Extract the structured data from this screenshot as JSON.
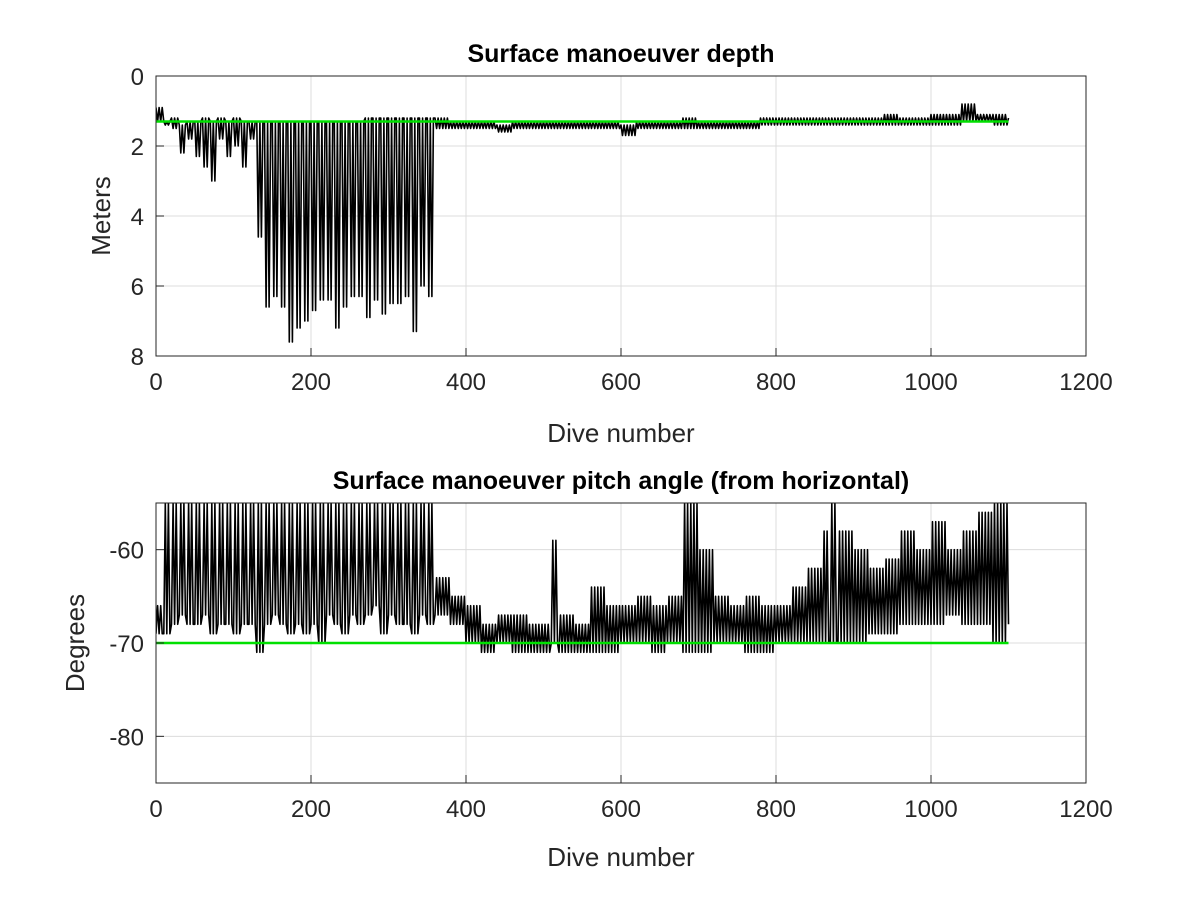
{
  "chart_data": [
    {
      "type": "line",
      "title": "Surface manoeuver depth",
      "xlabel": "Dive number",
      "ylabel": "Meters",
      "xlim": [
        0,
        1200
      ],
      "ylim": [
        0,
        8
      ],
      "y_reversed": true,
      "grid": true,
      "xticks": [
        0,
        200,
        400,
        600,
        800,
        1000,
        1200
      ],
      "yticks": [
        0,
        2,
        4,
        6,
        8
      ],
      "series": [
        {
          "color": "#000000",
          "values_description": "per-dive surface manoeuver depth",
          "x": [
            0,
            10,
            20,
            30,
            40,
            50,
            60,
            70,
            80,
            90,
            100,
            110,
            120,
            130,
            140,
            150,
            160,
            170,
            180,
            190,
            200,
            210,
            220,
            230,
            240,
            250,
            260,
            270,
            280,
            290,
            300,
            310,
            320,
            330,
            340,
            350,
            360,
            380,
            400,
            420,
            440,
            460,
            480,
            500,
            520,
            540,
            560,
            580,
            600,
            620,
            640,
            660,
            680,
            700,
            720,
            740,
            760,
            780,
            800,
            820,
            840,
            860,
            880,
            900,
            920,
            940,
            960,
            980,
            1000,
            1020,
            1040,
            1060,
            1080,
            1100
          ],
          "low": [
            0.9,
            1.3,
            1.2,
            1.4,
            1.3,
            1.3,
            1.2,
            1.3,
            1.2,
            1.3,
            1.2,
            1.3,
            1.3,
            1.3,
            1.3,
            1.3,
            1.3,
            1.3,
            1.3,
            1.3,
            1.3,
            1.3,
            1.3,
            1.3,
            1.3,
            1.3,
            1.3,
            1.2,
            1.2,
            1.2,
            1.2,
            1.2,
            1.2,
            1.2,
            1.2,
            1.2,
            1.2,
            1.3,
            1.3,
            1.3,
            1.4,
            1.3,
            1.3,
            1.3,
            1.3,
            1.3,
            1.3,
            1.3,
            1.4,
            1.3,
            1.3,
            1.3,
            1.2,
            1.3,
            1.3,
            1.3,
            1.3,
            1.2,
            1.2,
            1.2,
            1.2,
            1.2,
            1.2,
            1.2,
            1.2,
            1.1,
            1.2,
            1.2,
            1.1,
            1.1,
            0.8,
            1.1,
            1.1,
            1.2
          ],
          "high": [
            1.3,
            1.4,
            1.5,
            2.2,
            1.8,
            2.3,
            2.6,
            3.0,
            1.8,
            2.3,
            2.0,
            2.6,
            1.8,
            4.6,
            6.6,
            6.3,
            6.6,
            7.6,
            7.2,
            7.0,
            6.7,
            6.4,
            6.4,
            7.2,
            6.6,
            6.3,
            6.3,
            6.9,
            6.4,
            6.8,
            6.5,
            6.5,
            6.3,
            7.3,
            6.0,
            6.3,
            1.5,
            1.5,
            1.5,
            1.5,
            1.6,
            1.5,
            1.5,
            1.5,
            1.5,
            1.5,
            1.5,
            1.5,
            1.7,
            1.5,
            1.5,
            1.5,
            1.5,
            1.5,
            1.5,
            1.5,
            1.5,
            1.4,
            1.4,
            1.4,
            1.4,
            1.4,
            1.4,
            1.4,
            1.4,
            1.4,
            1.4,
            1.4,
            1.4,
            1.4,
            1.3,
            1.3,
            1.4,
            1.4
          ]
        },
        {
          "color": "#00e000",
          "x": [
            0,
            1100
          ],
          "values": [
            1.3,
            1.3
          ]
        }
      ]
    },
    {
      "type": "line",
      "title": "Surface manoeuver pitch angle (from horizontal)",
      "xlabel": "Dive number",
      "ylabel": "Degrees",
      "xlim": [
        0,
        1200
      ],
      "ylim": [
        -85,
        -55
      ],
      "grid": true,
      "xticks": [
        0,
        200,
        400,
        600,
        800,
        1000,
        1200
      ],
      "yticks": [
        -60,
        -70,
        -80
      ],
      "series": [
        {
          "color": "#000000",
          "x": [
            0,
            10,
            20,
            30,
            40,
            50,
            60,
            70,
            80,
            90,
            100,
            110,
            120,
            130,
            140,
            150,
            160,
            170,
            180,
            190,
            200,
            210,
            220,
            230,
            240,
            250,
            260,
            270,
            280,
            290,
            300,
            310,
            320,
            330,
            340,
            350,
            360,
            380,
            400,
            420,
            440,
            460,
            480,
            500,
            510,
            520,
            540,
            560,
            580,
            600,
            620,
            640,
            660,
            680,
            700,
            720,
            740,
            760,
            780,
            800,
            820,
            840,
            860,
            870,
            880,
            900,
            920,
            940,
            960,
            980,
            1000,
            1020,
            1040,
            1060,
            1080,
            1100
          ],
          "low": [
            -69,
            -69,
            -68,
            -67,
            -68,
            -68,
            -67,
            -69,
            -68,
            -68,
            -69,
            -68,
            -68,
            -71,
            -68,
            -67,
            -68,
            -69,
            -68,
            -69,
            -68,
            -70,
            -67,
            -68,
            -69,
            -67,
            -68,
            -67,
            -66,
            -69,
            -67,
            -68,
            -68,
            -69,
            -67,
            -68,
            -67,
            -68,
            -70,
            -71,
            -70,
            -71,
            -71,
            -71,
            -70,
            -71,
            -71,
            -71,
            -71,
            -70,
            -70,
            -71,
            -70,
            -71,
            -71,
            -70,
            -70,
            -71,
            -71,
            -70,
            -70,
            -70,
            -70,
            -70,
            -70,
            -70,
            -69,
            -69,
            -68,
            -68,
            -68,
            -67,
            -68,
            -68,
            -70,
            -68
          ],
          "high": [
            -66,
            -55,
            -55,
            -55,
            -55,
            -55,
            -55,
            -55,
            -55,
            -55,
            -55,
            -55,
            -55,
            -55,
            -55,
            -55,
            -55,
            -55,
            -55,
            -55,
            -55,
            -55,
            -55,
            -55,
            -55,
            -55,
            -55,
            -55,
            -55,
            -55,
            -55,
            -55,
            -55,
            -55,
            -55,
            -55,
            -63,
            -65,
            -66,
            -68,
            -67,
            -67,
            -68,
            -68,
            -59,
            -67,
            -68,
            -64,
            -66,
            -66,
            -65,
            -66,
            -65,
            -55,
            -60,
            -65,
            -66,
            -65,
            -66,
            -66,
            -64,
            -62,
            -58,
            -55,
            -58,
            -60,
            -62,
            -61,
            -58,
            -60,
            -57,
            -60,
            -58,
            -56,
            -55,
            -57
          ]
        },
        {
          "color": "#00e000",
          "x": [
            0,
            1100
          ],
          "values": [
            -70,
            -70
          ]
        }
      ]
    }
  ]
}
